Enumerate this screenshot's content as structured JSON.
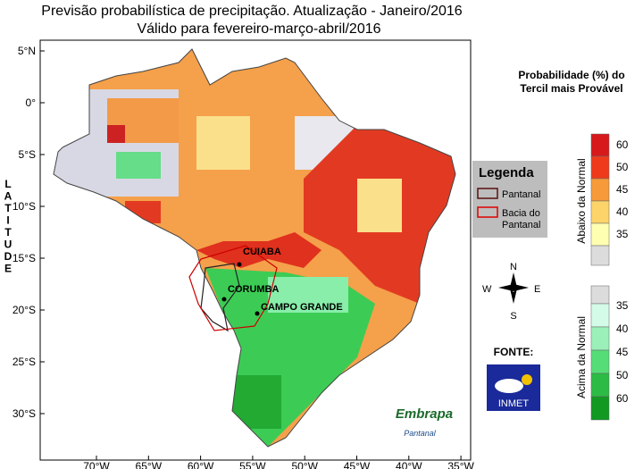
{
  "title": [
    "Previsão probabilística de precipitação. Atualização - Janeiro/2016",
    "Válido para fevereiro-março-abril/2016"
  ],
  "axis": {
    "y_label": "LATITUDE",
    "lat_ticks": [
      "5°N",
      "0°",
      "5°S",
      "10°S",
      "15°S",
      "20°S",
      "25°S",
      "30°S"
    ],
    "lon_ticks": [
      "70°W",
      "65°W",
      "60°W",
      "55°W",
      "50°W",
      "45°W",
      "40°W",
      "35°W"
    ]
  },
  "cities": [
    "CUIABA",
    "CORUMBA",
    "CAMPO GRANDE"
  ],
  "legend": {
    "title": "Legenda",
    "items": [
      "Pantanal",
      "Bacia do Pantanal"
    ]
  },
  "compass": {
    "n": "N",
    "s": "S",
    "e": "E",
    "w": "W"
  },
  "scale": {
    "title": "Probabilidade (%) do Tercil mais Provável",
    "below": {
      "label": "Abaixo da Normal",
      "levels": [
        60,
        50,
        45,
        40,
        35
      ]
    },
    "above": {
      "label": "Acima da Normal",
      "levels": [
        35,
        40,
        45,
        50,
        60
      ]
    }
  },
  "source": {
    "label": "FONTE:",
    "logo": "INMET"
  },
  "embrapa": {
    "name": "Embrapa",
    "unit": "Pantanal"
  }
}
